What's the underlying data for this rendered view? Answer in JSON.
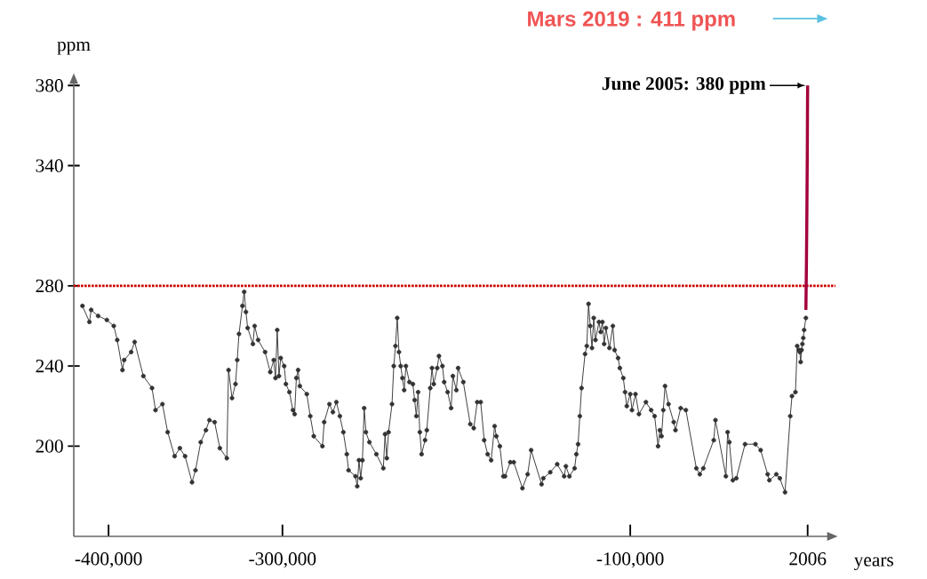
{
  "chart_data": {
    "type": "line",
    "xlabel": "years",
    "ylabel": "ppm",
    "xlim": [
      -420000,
      18000
    ],
    "ylim": [
      155,
      385
    ],
    "xticks": [
      {
        "value": -400000,
        "label": "-400,000"
      },
      {
        "value": -300000,
        "label": "-300,000"
      },
      {
        "value": -100000,
        "label": "-100,000"
      },
      2006
    ],
    "yticks": [
      200,
      240,
      280,
      340,
      380
    ],
    "marker": "circle",
    "ref_lines": [
      {
        "axis": "y",
        "value": 280,
        "color": "#cc0000",
        "line_style": "dotted"
      }
    ],
    "annotations": [
      {
        "text": "June 2005: 380 ppm",
        "x": 2005,
        "y": 380
      },
      "Mars 2019 : 411 ppm"
    ],
    "series": [
      {
        "color": "#333333",
        "x": [
          -415000,
          -411000,
          -410000,
          -406000,
          -401000,
          -397000,
          -395000,
          -392000,
          -391000,
          -387000,
          -385000,
          -380000,
          -375000,
          -373000,
          -369000,
          -366000,
          -362000,
          -359000,
          -356000,
          -352000,
          -350000,
          -347000,
          -344000,
          -342000,
          -339000,
          -336000,
          -332000,
          -331000,
          -329000,
          -327000,
          -326000,
          -325000,
          -323000,
          -322000,
          -321000,
          -320000,
          -317000,
          -316000,
          -314000,
          -310000,
          -307000,
          -305000,
          -304000,
          -303000,
          -302000,
          -301000,
          -299000,
          -298000,
          -296000,
          -294000,
          -293000,
          -292000,
          -291000,
          -290000,
          -286000,
          -284000,
          -282000,
          -277000,
          -276000,
          -273000,
          -271000,
          -269000,
          -267000,
          -265000,
          -263000,
          -262000,
          -258000,
          -257000,
          -256000,
          -255000,
          -254000,
          -253000,
          -252000,
          -250000,
          -246000,
          -242000,
          -241000,
          -240000,
          -239000,
          -237000,
          -236000,
          -235000,
          -234000,
          -233000,
          -232000,
          -231000,
          -230000,
          -229000,
          -227000,
          -225000,
          -224000,
          -223000,
          -222000,
          -221000,
          -220000,
          -218000,
          -217000,
          -215000,
          -214000,
          -213000,
          -211000,
          -210000,
          -208000,
          -207000,
          -205000,
          -203000,
          -202000,
          -200000,
          -199000,
          -196000,
          -192000,
          -190000,
          -188000,
          -186000,
          -184000,
          -182000,
          -180000,
          -178000,
          -177000,
          -175000,
          -173000,
          -172000,
          -169000,
          -167000,
          -162000,
          -159000,
          -157000,
          -151000,
          -150000,
          -146000,
          -142000,
          -138000,
          -137000,
          -135000,
          -132000,
          -131000,
          -130000,
          -129000,
          -128000,
          -126000,
          -125000,
          -124000,
          -123000,
          -122000,
          -121000,
          -120000,
          -118000,
          -117000,
          -116000,
          -115000,
          -114000,
          -112000,
          -110000,
          -109000,
          -107000,
          -106000,
          -104000,
          -103000,
          -102000,
          -100000,
          -99000,
          -97000,
          -95000,
          -91000,
          -88000,
          -86000,
          -84000,
          -83000,
          -82000,
          -81000,
          -80000,
          -78000,
          -75000,
          -74000,
          -71000,
          -68000,
          -62000,
          -60000,
          -58000,
          -52000,
          -51000,
          -45000,
          -44000,
          -43000,
          -41000,
          -39000,
          -34000,
          -28000,
          -25000,
          -21000,
          -20000,
          -16000,
          -14000,
          -11000,
          -8000,
          -7000,
          -5000,
          -4000,
          -3000,
          -2500,
          -2000,
          -1500,
          -1000,
          -500,
          0,
          1000
        ],
        "values": [
          270,
          262,
          268,
          265,
          263,
          260,
          253,
          238,
          243,
          247,
          252,
          235,
          229,
          218,
          221,
          207,
          195,
          199,
          195,
          182,
          188,
          202,
          208,
          213,
          212,
          199,
          194,
          238,
          224,
          231,
          243,
          256,
          270,
          277,
          267,
          259,
          251,
          260,
          253,
          247,
          237,
          243,
          234,
          258,
          235,
          244,
          240,
          231,
          227,
          218,
          216,
          234,
          238,
          230,
          226,
          215,
          205,
          200,
          212,
          221,
          217,
          222,
          215,
          207,
          196,
          188,
          185,
          180,
          193,
          184,
          193,
          219,
          207,
          202,
          196,
          189,
          206,
          194,
          207,
          221,
          240,
          250,
          264,
          247,
          240,
          234,
          228,
          240,
          232,
          231,
          223,
          215,
          227,
          207,
          196,
          203,
          208,
          229,
          239,
          231,
          239,
          245,
          240,
          232,
          227,
          219,
          235,
          228,
          239,
          232,
          211,
          209,
          222,
          222,
          203,
          196,
          193,
          210,
          205,
          200,
          185,
          185,
          192,
          192,
          179,
          186,
          198,
          181,
          184,
          187,
          191,
          185,
          190,
          185,
          189,
          196,
          201,
          215,
          229,
          246,
          250,
          271,
          260,
          249,
          264,
          253,
          262,
          257,
          262,
          251,
          259,
          249,
          260,
          248,
          244,
          239,
          234,
          227,
          220,
          226,
          218,
          226,
          216,
          222,
          218,
          215,
          200,
          208,
          205,
          218,
          230,
          221,
          212,
          208,
          219,
          218,
          189,
          186,
          189,
          203,
          213,
          185,
          207,
          202,
          183,
          184,
          201,
          201,
          198,
          186,
          183,
          186,
          184,
          177,
          215,
          225,
          227,
          250,
          248,
          247,
          242,
          248,
          251,
          254,
          258,
          264
        ]
      },
      {
        "color": "#a3003c",
        "marker": "none",
        "x": [
          1000,
          1300,
          1600,
          1800,
          1900,
          2005
        ],
        "values": [
          268,
          290,
          320,
          345,
          365,
          380
        ]
      }
    ]
  }
}
